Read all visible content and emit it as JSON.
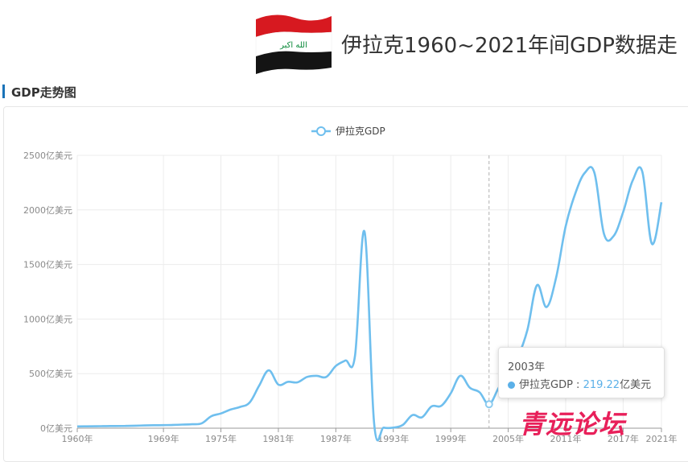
{
  "header": {
    "title": "伊拉克1960~2021年间GDP数据走",
    "flag_icon": "iraq-flag-icon",
    "flag_text": "الله اكبر"
  },
  "section": {
    "title": "GDP走势图"
  },
  "tooltip": {
    "year": "2003年",
    "series": "伊拉克GDP : ",
    "value": "219.22",
    "unit": "亿美元"
  },
  "watermark": "青远论坛",
  "colors": {
    "line": "#5bb0e8",
    "accent": "#1a73b8",
    "watermark": "#e8205a"
  },
  "chart_data": {
    "type": "line",
    "legend": "伊拉克GDP",
    "legend_position": "top-center",
    "grid": true,
    "ylabel_unit": "亿美元",
    "ylim": [
      0,
      2500
    ],
    "yticks": [
      "0亿美元",
      "500亿美元",
      "1000亿美元",
      "1500亿美元",
      "2000亿美元",
      "2500亿美元"
    ],
    "xticks": [
      "1960年",
      "1969年",
      "1975年",
      "1981年",
      "1987年",
      "1993年",
      "1999年",
      "2005年",
      "2011年",
      "2017年",
      "2021年"
    ],
    "highlight": {
      "year": 2003,
      "value": 219.22
    },
    "series": [
      {
        "name": "伊拉克GDP",
        "x": [
          1960,
          1961,
          1962,
          1963,
          1964,
          1965,
          1966,
          1967,
          1968,
          1969,
          1970,
          1971,
          1972,
          1973,
          1974,
          1975,
          1976,
          1977,
          1978,
          1979,
          1980,
          1981,
          1982,
          1983,
          1984,
          1985,
          1986,
          1987,
          1988,
          1989,
          1990,
          1991,
          1992,
          1993,
          1994,
          1995,
          1996,
          1997,
          1998,
          1999,
          2000,
          2001,
          2002,
          2003,
          2004,
          2005,
          2006,
          2007,
          2008,
          2009,
          2010,
          2011,
          2012,
          2013,
          2014,
          2015,
          2016,
          2017,
          2018,
          2019,
          2020,
          2021
        ],
        "values": [
          16,
          17,
          18,
          19,
          20,
          21,
          23,
          25,
          27,
          28,
          30,
          33,
          36,
          45,
          110,
          135,
          170,
          195,
          235,
          390,
          530,
          400,
          425,
          420,
          470,
          480,
          470,
          570,
          620,
          660,
          1800,
          40,
          5,
          5,
          30,
          120,
          100,
          200,
          205,
          320,
          480,
          370,
          330,
          219,
          370,
          500,
          650,
          900,
          1310,
          1110,
          1380,
          1850,
          2150,
          2340,
          2340,
          1780,
          1760,
          1980,
          2270,
          2350,
          1690,
          2070
        ]
      }
    ]
  }
}
